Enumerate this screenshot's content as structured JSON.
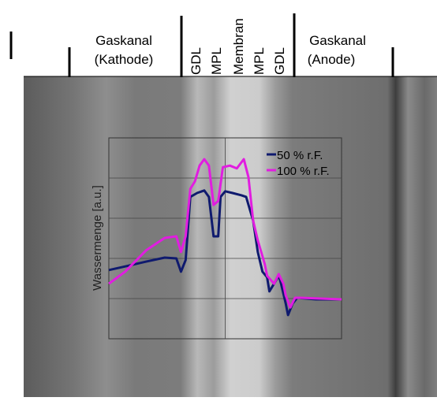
{
  "chart_data": {
    "type": "line",
    "annotations": [
      "Gaskanal",
      "(Kathode)",
      "GDL",
      "MPL",
      "Membran",
      "MPL",
      "GDL",
      "Gaskanal",
      "(Anode)"
    ],
    "ylabel": "Wassermenge [a.u.]",
    "xlim": [
      0,
      100
    ],
    "xticks": [
      50
    ],
    "ylim": [
      0,
      5
    ],
    "yticks": [
      1,
      2,
      3,
      4
    ],
    "grid": true,
    "series": [
      {
        "name": "50 % r.F.",
        "color": "#0f1a6e",
        "x": [
          0,
          7,
          16,
          24,
          29,
          31,
          33,
          35,
          38,
          41,
          43,
          45,
          47,
          48,
          50,
          53,
          57,
          59,
          62,
          64,
          66,
          68,
          69,
          71,
          73,
          74,
          76,
          77,
          79,
          81,
          89,
          100
        ],
        "values": [
          1.71,
          1.8,
          1.92,
          2.02,
          2.0,
          1.67,
          1.96,
          3.53,
          3.63,
          3.69,
          3.53,
          2.55,
          2.55,
          3.53,
          3.67,
          3.63,
          3.57,
          3.53,
          2.94,
          2.16,
          1.67,
          1.53,
          1.18,
          1.37,
          1.57,
          1.37,
          0.88,
          0.59,
          0.88,
          1.02,
          0.98,
          0.98
        ]
      },
      {
        "name": "100 % r.F.",
        "color": "#e11de0",
        "x": [
          0,
          7,
          16,
          24,
          29,
          31,
          33,
          35,
          37,
          39,
          41,
          43,
          45,
          47,
          49,
          52,
          55,
          58,
          60,
          62,
          64,
          67,
          68,
          71,
          73,
          75,
          76,
          78,
          80,
          82,
          100
        ],
        "values": [
          1.37,
          1.67,
          2.2,
          2.51,
          2.55,
          2.16,
          2.55,
          3.73,
          3.92,
          4.31,
          4.47,
          4.31,
          3.33,
          3.43,
          4.27,
          4.31,
          4.24,
          4.47,
          4.02,
          2.94,
          2.45,
          1.86,
          1.57,
          1.37,
          1.61,
          1.37,
          1.08,
          0.78,
          1.02,
          1.02,
          0.98
        ]
      }
    ]
  }
}
